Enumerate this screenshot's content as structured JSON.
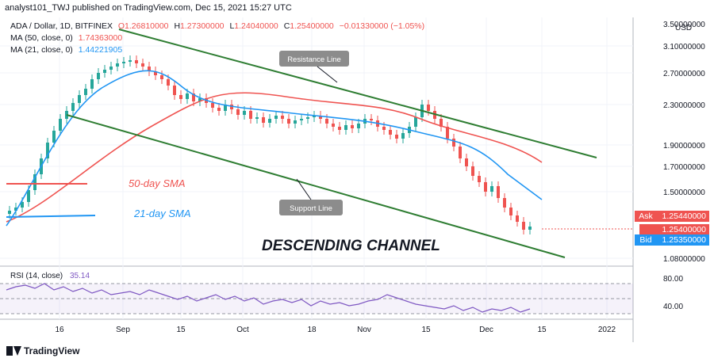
{
  "header": {
    "publisher": "analyst101_TWJ published on TradingView.com, Dec 15, 2021 15:27 UTC"
  },
  "legend": {
    "symbol": "ADA / Dollar, 1D, BITFINEX",
    "ohlc": {
      "o_label": "O",
      "o": "1.26810000",
      "h_label": "H",
      "h": "1.27300000",
      "l_label": "L",
      "l": "1.24040000",
      "c_label": "C",
      "c": "1.25400000",
      "change": "−0.01330000 (−1.05%)"
    },
    "ma50": {
      "label": "MA (50, close, 0)",
      "value": "1.74363000"
    },
    "ma21": {
      "label": "MA (21, close, 0)",
      "value": "1.44221905"
    },
    "rsi": {
      "label": "RSI (14, close)",
      "value": "35.14"
    }
  },
  "price_axis": {
    "currency": "USD",
    "ticks": [
      "3.50000000",
      "3.10000000",
      "2.70000000",
      "2.30000000",
      "1.90000000",
      "1.70000000",
      "1.50000000",
      "1.08000000"
    ],
    "ask_label": "Ask",
    "ask_value": "1.25440000",
    "last_value": "1.25400000",
    "bid_label": "Bid",
    "bid_value": "1.25350000"
  },
  "rsi_axis": {
    "ticks": [
      "80.00",
      "40.00"
    ]
  },
  "time_axis": {
    "ticks": [
      "16",
      "Sep",
      "15",
      "Oct",
      "18",
      "Nov",
      "15",
      "Dec",
      "15",
      "2022"
    ]
  },
  "annotations": {
    "resistance": "Resistance Line",
    "support": "Support Line",
    "sma50": "50-day SMA",
    "sma21": "21-day SMA",
    "channel": "DESCENDING CHANNEL"
  },
  "footer": {
    "brand": "TradingView"
  },
  "colors": {
    "up": "#26a69a",
    "down": "#ef5350",
    "ma50": "#ef5350",
    "ma21": "#2196f3",
    "channel": "#2e7d32",
    "rsi": "#7e57c2",
    "ask": "#ef5350",
    "bid": "#2196f3"
  },
  "chart_data": {
    "type": "candlestick",
    "title": "ADA / Dollar, 1D, BITFINEX",
    "x_ticks": [
      "16",
      "Sep",
      "15",
      "Oct",
      "18",
      "Nov",
      "15",
      "Dec",
      "15",
      "2022"
    ],
    "y_ticks": [
      3.5,
      3.1,
      2.7,
      2.3,
      1.9,
      1.7,
      1.5,
      1.08
    ],
    "series": [
      {
        "name": "MA (50, close, 0)",
        "last": 1.74363
      },
      {
        "name": "MA (21, close, 0)",
        "last": 1.44221905
      },
      {
        "name": "RSI (14, close)",
        "last": 35.14
      }
    ],
    "last_close": 1.254,
    "rsi_levels": [
      70,
      30
    ],
    "grid": true
  }
}
